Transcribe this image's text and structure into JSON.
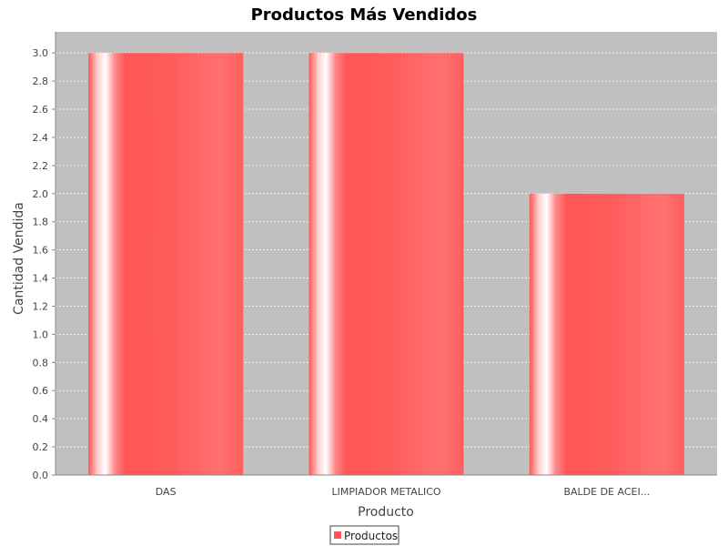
{
  "chart_data": {
    "type": "bar",
    "title": "Productos Más Vendidos",
    "xlabel": "Producto",
    "ylabel": "Cantidad Vendida",
    "categories": [
      "DAS",
      "LIMPIADOR METALICO",
      "BALDE DE ACEI..."
    ],
    "series": [
      {
        "name": "Productos",
        "values": [
          3.0,
          3.0,
          2.0
        ]
      }
    ],
    "ylim": [
      0,
      3.15
    ],
    "yticks": [
      "0.0",
      "0.2",
      "0.4",
      "0.6",
      "0.8",
      "1.0",
      "1.2",
      "1.4",
      "1.6",
      "1.8",
      "2.0",
      "2.2",
      "2.4",
      "2.6",
      "2.8",
      "3.0"
    ],
    "grid": true,
    "legend_position": "bottom",
    "colors": {
      "bar": "#ff5555",
      "plot_background": "#c0c0c0",
      "gridline": "#ffffff"
    }
  }
}
